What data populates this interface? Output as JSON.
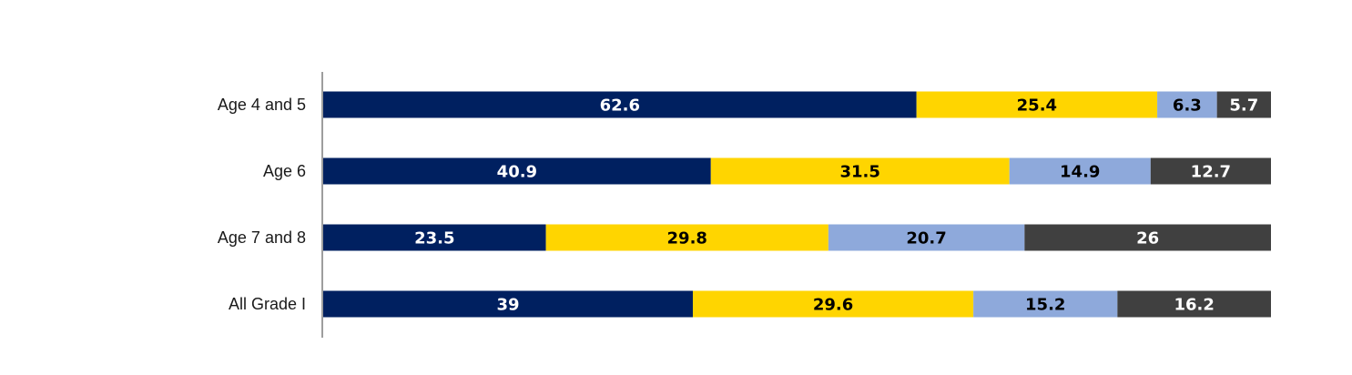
{
  "chart_data": {
    "type": "bar",
    "orientation": "horizontal",
    "stacked": true,
    "categories": [
      "Age 4 and 5",
      "Age 6",
      "Age 7 and 8",
      "All Grade I"
    ],
    "series": [
      {
        "values": [
          62.6,
          40.9,
          23.5,
          39
        ],
        "color": "#002060",
        "label_color": "#ffffff"
      },
      {
        "values": [
          25.4,
          31.5,
          29.8,
          29.6
        ],
        "color": "#FFD500",
        "label_color": "#000000"
      },
      {
        "values": [
          6.3,
          14.9,
          20.7,
          15.2
        ],
        "color": "#8EA9DB",
        "label_color": "#000000"
      },
      {
        "values": [
          5.7,
          12.7,
          26,
          16.2
        ],
        "color": "#404040",
        "label_color": "#ffffff"
      }
    ],
    "xlim": [
      0,
      100
    ],
    "grid": false,
    "legend": "none",
    "title": "",
    "xlabel": "",
    "ylabel": ""
  }
}
